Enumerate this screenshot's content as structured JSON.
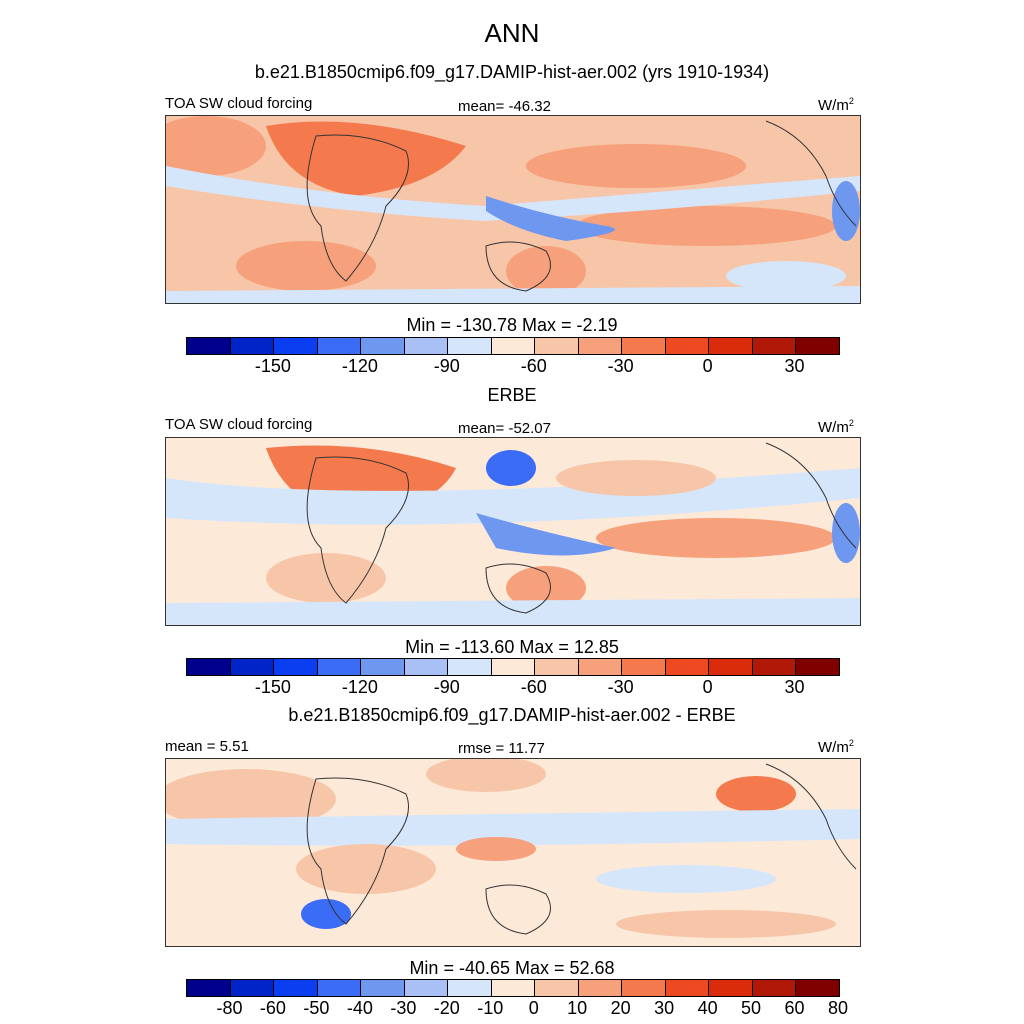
{
  "title": "ANN",
  "colors": [
    "#00008c",
    "#0024c8",
    "#0a3ef0",
    "#3a6cf5",
    "#6e97f0",
    "#a8c0f5",
    "#d6e6fa",
    "#fde9d8",
    "#f7c5a8",
    "#f6a07c",
    "#f47a4e",
    "#ee4a22",
    "#da2b0a",
    "#b01808",
    "#800000"
  ],
  "panels": [
    {
      "subtitle": "b.e21.B1850cmip6.f09_g17.DAMIP-hist-aer.002 (yrs 1910-1934)",
      "left_label": "TOA SW cloud forcing",
      "center_label": "mean= -46.32",
      "units_base": "W/m",
      "units_exp": "2",
      "minmax": "Min = -130.78 Max =  -2.19",
      "ticks": [
        "-150",
        "-120",
        "-90",
        "-60",
        "-30",
        "0",
        "30"
      ]
    },
    {
      "subtitle": "ERBE",
      "left_label": "TOA SW cloud forcing",
      "center_label": "mean= -52.07",
      "units_base": "W/m",
      "units_exp": "2",
      "minmax": "Min = -113.60 Max =  12.85",
      "ticks": [
        "-150",
        "-120",
        "-90",
        "-60",
        "-30",
        "0",
        "30"
      ]
    },
    {
      "subtitle": "b.e21.B1850cmip6.f09_g17.DAMIP-hist-aer.002 - ERBE",
      "left_label": "mean =   5.51",
      "center_label": "rmse =  11.77",
      "units_base": "W/m",
      "units_exp": "2",
      "minmax": "Min = -40.65 Max =  52.68",
      "ticks": [
        "-80",
        "-60",
        "-50",
        "-40",
        "-30",
        "-20",
        "-10",
        "0",
        "10",
        "20",
        "30",
        "40",
        "50",
        "60",
        "80"
      ]
    }
  ]
}
